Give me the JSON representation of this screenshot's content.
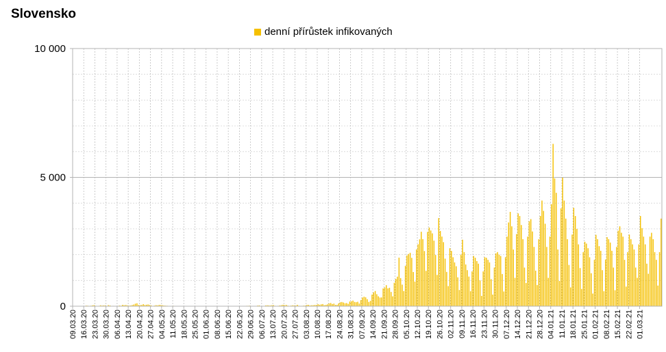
{
  "chart_data": {
    "type": "bar",
    "title": "Slovensko",
    "series": [
      {
        "name": "denní přírůstek infikovaných",
        "color": "#f5c000"
      }
    ],
    "x_start": "2020-03-09",
    "x_tick_labels": [
      "09.03.20",
      "16.03.20",
      "23.03.20",
      "30.03.20",
      "06.04.20",
      "13.04.20",
      "20.04.20",
      "27.04.20",
      "04.05.20",
      "11.05.20",
      "18.05.20",
      "25.05.20",
      "01.06.20",
      "08.06.20",
      "15.06.20",
      "22.06.20",
      "29.06.20",
      "06.07.20",
      "13.07.20",
      "20.07.20",
      "27.07.20",
      "03.08.20",
      "10.08.20",
      "17.08.20",
      "24.08.20",
      "31.08.20",
      "07.09.20",
      "14.09.20",
      "21.09.20",
      "28.09.20",
      "05.10.20",
      "12.10.20",
      "19.10.20",
      "26.10.20",
      "02.11.20",
      "09.11.20",
      "16.11.20",
      "23.11.20",
      "30.11.20",
      "07.12.20",
      "14.12.20",
      "21.12.20",
      "28.12.20",
      "04.01.21",
      "11.01.21",
      "18.01.21",
      "25.01.21",
      "01.02.21",
      "08.02.21",
      "15.02.21",
      "22.02.21",
      "01.03.21"
    ],
    "y_ticks": [
      0,
      5000,
      10000
    ],
    "y_tick_labels": [
      "0",
      "5 000",
      "10 000"
    ],
    "ylim": [
      0,
      10000
    ],
    "grid": true,
    "legend_position": "top",
    "values": [
      1,
      2,
      3,
      0,
      5,
      10,
      11,
      7,
      24,
      20,
      14,
      19,
      32,
      41,
      18,
      11,
      15,
      35,
      25,
      30,
      32,
      15,
      42,
      29,
      12,
      15,
      5,
      8,
      16,
      26,
      20,
      53,
      38,
      47,
      31,
      24,
      30,
      44,
      65,
      98,
      114,
      47,
      44,
      49,
      78,
      48,
      57,
      66,
      48,
      30,
      8,
      24,
      40,
      32,
      51,
      45,
      37,
      27,
      22,
      18,
      7,
      6,
      3,
      17,
      9,
      9,
      5,
      10,
      8,
      2,
      6,
      5,
      7,
      8,
      7,
      3,
      3,
      5,
      7,
      10,
      11,
      12,
      6,
      5,
      4,
      3,
      4,
      9,
      13,
      8,
      5,
      10,
      7,
      2,
      2,
      3,
      4,
      8,
      7,
      10,
      4,
      1,
      2,
      4,
      5,
      6,
      10,
      12,
      13,
      16,
      17,
      21,
      10,
      8,
      11,
      13,
      25,
      30,
      9,
      14,
      11,
      30,
      34,
      30,
      28,
      37,
      40,
      17,
      13,
      17,
      31,
      38,
      55,
      42,
      50,
      24,
      14,
      24,
      34,
      32,
      28,
      53,
      19,
      15,
      16,
      23,
      29,
      50,
      52,
      30,
      36,
      38,
      48,
      49,
      78,
      57,
      71,
      83,
      41,
      52,
      71,
      110,
      123,
      85,
      100,
      54,
      54,
      111,
      152,
      163,
      143,
      114,
      122,
      91,
      181,
      191,
      219,
      166,
      155,
      171,
      105,
      235,
      336,
      368,
      345,
      272,
      165,
      206,
      449,
      536,
      590,
      465,
      384,
      336,
      340,
      690,
      727,
      816,
      692,
      715,
      553,
      383,
      909,
      1057,
      1147,
      1885,
      1090,
      837,
      587,
      1567,
      1969,
      2026,
      2073,
      1876,
      1326,
      956,
      2203,
      2402,
      2595,
      2890,
      2602,
      2141,
      1372,
      2884,
      3053,
      2937,
      2826,
      2545,
      1987,
      1213,
      3420,
      2920,
      2702,
      2485,
      1845,
      1330,
      780,
      2250,
      2145,
      1900,
      1700,
      1550,
      1120,
      630,
      2000,
      2580,
      2100,
      1620,
      1400,
      1150,
      580,
      1350,
      1950,
      1880,
      1750,
      1650,
      1000,
      400,
      1350,
      1900,
      1880,
      1800,
      1700,
      1050,
      450,
      1500,
      2050,
      2100,
      2000,
      1950,
      1250,
      570,
      1900,
      2700,
      3250,
      3660,
      3100,
      2200,
      1100,
      2800,
      3600,
      3500,
      3150,
      2600,
      1500,
      900,
      2700,
      3300,
      3380,
      2900,
      2300,
      1380,
      820,
      2600,
      3500,
      4100,
      3700,
      3200,
      2300,
      1100,
      2700,
      3960,
      6300,
      4960,
      4400,
      2200,
      980,
      3800,
      4990,
      4100,
      3400,
      2600,
      1600,
      730,
      2780,
      3820,
      3500,
      3000,
      2400,
      1480,
      670,
      2100,
      2500,
      2430,
      2250,
      1900,
      1280,
      490,
      1800,
      2770,
      2600,
      2330,
      2150,
      1400,
      580,
      1810,
      2680,
      2600,
      2470,
      2150,
      1500,
      620,
      2300,
      2930,
      3100,
      2850,
      2700,
      1800,
      760,
      2100,
      2780,
      2600,
      2400,
      2200,
      1500,
      1100,
      2400,
      3500,
      3030,
      2700,
      2400,
      1650,
      1260,
      2700,
      2850,
      2600,
      2100,
      1800,
      800,
      2100,
      3400
    ]
  }
}
